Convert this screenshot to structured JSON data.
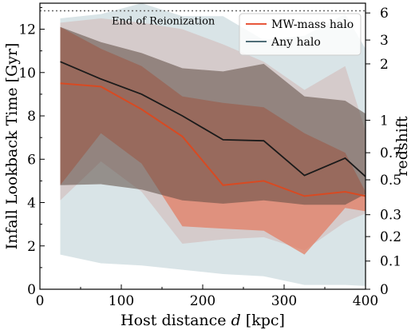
{
  "chart_data": {
    "type": "area",
    "xlabel_prefix": "Host distance ",
    "xlabel_var": "d",
    "xlabel_suffix": " [kpc]",
    "ylabel": "Infall Lookback Time [Gyr]",
    "y2label": "redshift",
    "xlim": [
      0,
      400
    ],
    "ylim": [
      0,
      13.2
    ],
    "xticks": [
      "0",
      "100",
      "200",
      "300",
      "400"
    ],
    "yticks": [
      "0",
      "2",
      "4",
      "6",
      "8",
      "10",
      "12"
    ],
    "redshift_ticks": [
      {
        "label": "0",
        "t": 0.0
      },
      {
        "label": "0.1",
        "t": 1.3
      },
      {
        "label": "0.2",
        "t": 2.43
      },
      {
        "label": "0.3",
        "t": 3.44
      },
      {
        "label": "0.5",
        "t": 5.05
      },
      {
        "label": "0.7",
        "t": 6.3
      },
      {
        "label": "1",
        "t": 7.8
      },
      {
        "label": "2",
        "t": 10.4
      },
      {
        "label": "3",
        "t": 11.5
      },
      {
        "label": "6",
        "t": 12.75
      }
    ],
    "reionization": {
      "label": "End of Reionization",
      "t": 12.85
    },
    "x": [
      25,
      75,
      125,
      175,
      225,
      275,
      325,
      375,
      400
    ],
    "series": [
      {
        "name": "MW-mass halo",
        "color": "#e8573b",
        "median": [
          9.5,
          9.35,
          8.3,
          7.05,
          4.8,
          5.0,
          4.3,
          4.5,
          4.3
        ],
        "band68_low": [
          4.8,
          7.2,
          5.8,
          2.9,
          2.8,
          2.7,
          1.6,
          3.75,
          3.6
        ],
        "band68_high": [
          12.1,
          11.1,
          10.3,
          8.9,
          8.6,
          8.4,
          7.2,
          6.3,
          4.5
        ],
        "band95_low": [
          4.1,
          5.9,
          4.5,
          2.1,
          2.3,
          2.4,
          1.8,
          3.1,
          3.5
        ],
        "band95_high": [
          12.3,
          12.5,
          12.3,
          12.0,
          11.3,
          10.5,
          9.2,
          10.3,
          7.3
        ]
      },
      {
        "name": "Any halo",
        "color": "#4f6d77",
        "median": [
          10.5,
          9.7,
          9.0,
          8.0,
          6.9,
          6.85,
          5.25,
          6.05,
          5.2
        ],
        "band68_low": [
          4.8,
          4.85,
          4.6,
          4.1,
          3.95,
          4.1,
          3.9,
          3.9,
          4.4
        ],
        "band68_high": [
          12.1,
          11.4,
          10.9,
          10.2,
          10.05,
          10.4,
          8.9,
          8.7,
          8.1
        ],
        "band95_low": [
          1.6,
          1.2,
          1.1,
          0.9,
          0.7,
          0.6,
          0.2,
          0.2,
          0.15
        ],
        "band95_high": [
          12.5,
          12.7,
          13.2,
          12.6,
          12.6,
          11.5,
          11.7,
          12.7,
          11.1
        ]
      }
    ]
  }
}
